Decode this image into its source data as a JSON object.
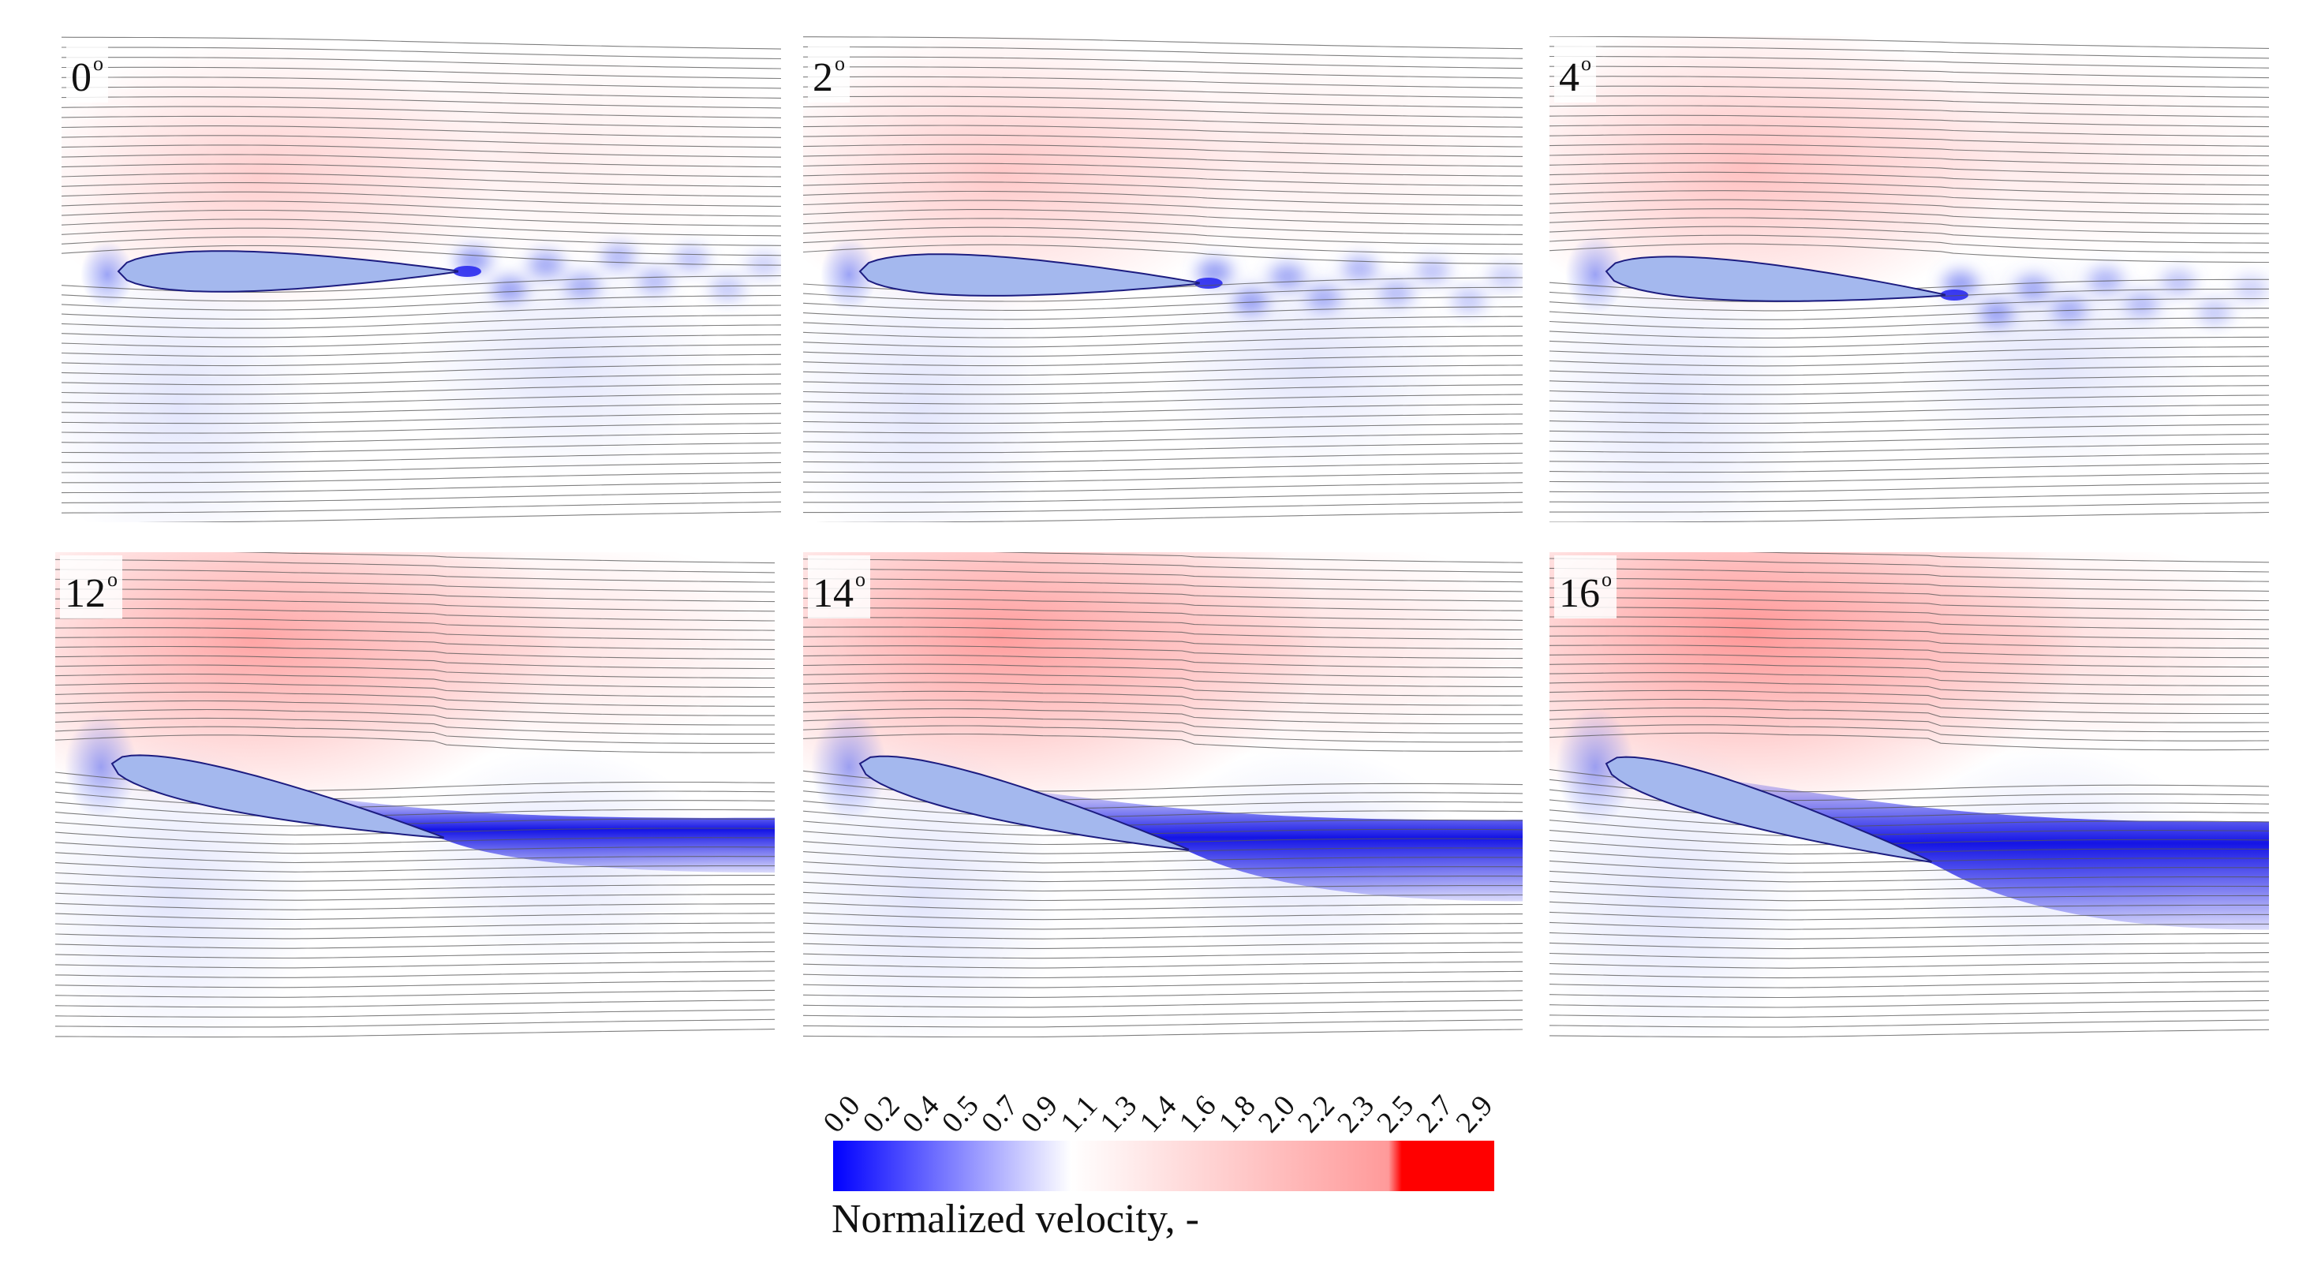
{
  "panels": [
    {
      "label": "0",
      "angle_deg": 0,
      "unit": "o"
    },
    {
      "label": "2",
      "angle_deg": 2,
      "unit": "o"
    },
    {
      "label": "4",
      "angle_deg": 4,
      "unit": "o"
    },
    {
      "label": "12",
      "angle_deg": 12,
      "unit": "o"
    },
    {
      "label": "14",
      "angle_deg": 14,
      "unit": "o"
    },
    {
      "label": "16",
      "angle_deg": 16,
      "unit": "o"
    }
  ],
  "colorbar": {
    "title": "Normalized velocity, -",
    "ticks": [
      "0.0",
      "0.2",
      "0.4",
      "0.5",
      "0.7",
      "0.9",
      "1.1",
      "1.3",
      "1.4",
      "1.6",
      "1.8",
      "2.0",
      "2.2",
      "2.3",
      "2.5",
      "2.7",
      "2.9"
    ],
    "colors": {
      "low": "#0000ff",
      "mid": "#ffffff",
      "high": "#ff0000"
    }
  },
  "colors": {
    "airfoil": "#a4b8ee",
    "streamline": "#555555",
    "wake": "#1414e6"
  }
}
